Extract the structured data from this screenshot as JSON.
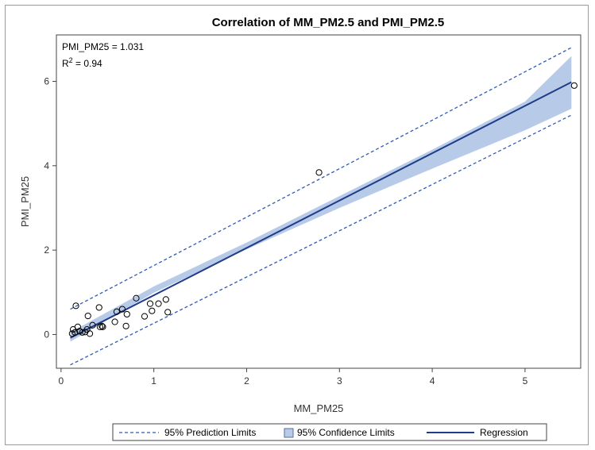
{
  "chart_data": {
    "type": "scatter",
    "title": "Correlation of MM_PM2.5 and PMI_PM2.5",
    "xlabel": "MM_PM25",
    "ylabel": "PMI_PM25",
    "xlim": [
      -0.05,
      5.6
    ],
    "ylim": [
      -0.8,
      7.1
    ],
    "xticks": [
      0,
      1,
      2,
      3,
      4,
      5
    ],
    "yticks": [
      0,
      2,
      4,
      6
    ],
    "grid": false,
    "annotations": {
      "slope_label": "PMI_PM25 = 1.031",
      "r2_prefix": "R",
      "r2_sup": "2",
      "r2_value": " = 0.94"
    },
    "colors": {
      "regression": "#1f3c88",
      "confidence_band": "#b7cbe8",
      "prediction_limits": "#2f5bb7",
      "points": "#000000"
    },
    "points": [
      {
        "x": 0.12,
        "y": 0.02
      },
      {
        "x": 0.13,
        "y": 0.12
      },
      {
        "x": 0.15,
        "y": 0.05
      },
      {
        "x": 0.16,
        "y": 0.68
      },
      {
        "x": 0.18,
        "y": 0.18
      },
      {
        "x": 0.2,
        "y": 0.08
      },
      {
        "x": 0.23,
        "y": 0.05
      },
      {
        "x": 0.26,
        "y": 0.06
      },
      {
        "x": 0.28,
        "y": 0.12
      },
      {
        "x": 0.29,
        "y": 0.44
      },
      {
        "x": 0.31,
        "y": 0.02
      },
      {
        "x": 0.34,
        "y": 0.22
      },
      {
        "x": 0.41,
        "y": 0.64
      },
      {
        "x": 0.42,
        "y": 0.18
      },
      {
        "x": 0.44,
        "y": 0.2
      },
      {
        "x": 0.45,
        "y": 0.18
      },
      {
        "x": 0.58,
        "y": 0.3
      },
      {
        "x": 0.6,
        "y": 0.54
      },
      {
        "x": 0.66,
        "y": 0.6
      },
      {
        "x": 0.7,
        "y": 0.2
      },
      {
        "x": 0.71,
        "y": 0.48
      },
      {
        "x": 0.81,
        "y": 0.86
      },
      {
        "x": 0.9,
        "y": 0.43
      },
      {
        "x": 0.96,
        "y": 0.73
      },
      {
        "x": 0.98,
        "y": 0.56
      },
      {
        "x": 1.05,
        "y": 0.73
      },
      {
        "x": 1.13,
        "y": 0.83
      },
      {
        "x": 1.15,
        "y": 0.53
      },
      {
        "x": 2.78,
        "y": 3.84
      },
      {
        "x": 5.53,
        "y": 5.9
      }
    ],
    "regression": {
      "x": [
        0.1,
        5.5
      ],
      "y": [
        -0.08,
        5.98
      ]
    },
    "confidence_band": {
      "x": [
        0.1,
        1.0,
        2.0,
        3.0,
        4.0,
        5.0,
        5.5
      ],
      "lower": [
        -0.17,
        0.99,
        2.02,
        3.0,
        3.93,
        4.84,
        5.35
      ],
      "upper": [
        0.05,
        1.14,
        2.18,
        3.28,
        4.38,
        5.52,
        6.6
      ]
    },
    "prediction_limits": {
      "x": [
        0.1,
        5.5
      ],
      "lower": [
        -0.72,
        5.2
      ],
      "upper": [
        0.6,
        6.8
      ]
    },
    "legend": {
      "position": "bottom",
      "items": [
        {
          "label": "95% Prediction Limits",
          "kind": "dashed-line"
        },
        {
          "label": "95% Confidence Limits",
          "kind": "filled-box"
        },
        {
          "label": "Regression",
          "kind": "solid-line"
        }
      ]
    }
  }
}
